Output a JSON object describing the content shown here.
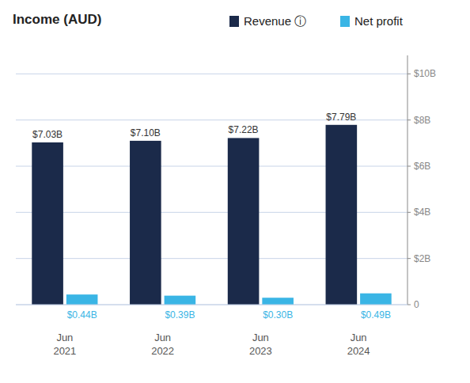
{
  "chart_data": {
    "type": "bar",
    "title": "Income (AUD)",
    "categories": [
      "Jun\n2021",
      "Jun\n2022",
      "Jun\n2023",
      "Jun\n2024"
    ],
    "series": [
      {
        "name": "Revenue ⓘ",
        "color": "#1b2a4a",
        "values": [
          7.03,
          7.1,
          7.22,
          7.79
        ],
        "value_labels": [
          "$7.03B",
          "$7.10B",
          "$7.22B",
          "$7.79B"
        ]
      },
      {
        "name": "Net profit",
        "color": "#3ab5e5",
        "values": [
          0.44,
          0.39,
          0.3,
          0.49
        ],
        "value_labels": [
          "$0.44B",
          "$0.39B",
          "$0.30B",
          "$0.49B"
        ]
      }
    ],
    "ylim": [
      0,
      10.8
    ],
    "yticks": [
      0,
      {
        "value": 2,
        "label": "$2B"
      },
      {
        "value": 4,
        "label": "$4B"
      },
      {
        "value": 6,
        "label": "$6B"
      },
      {
        "value": 8,
        "label": "$8B"
      },
      {
        "value": 10,
        "label": "$10B"
      }
    ],
    "grid": true,
    "legend": "top",
    "data_labels": true
  }
}
